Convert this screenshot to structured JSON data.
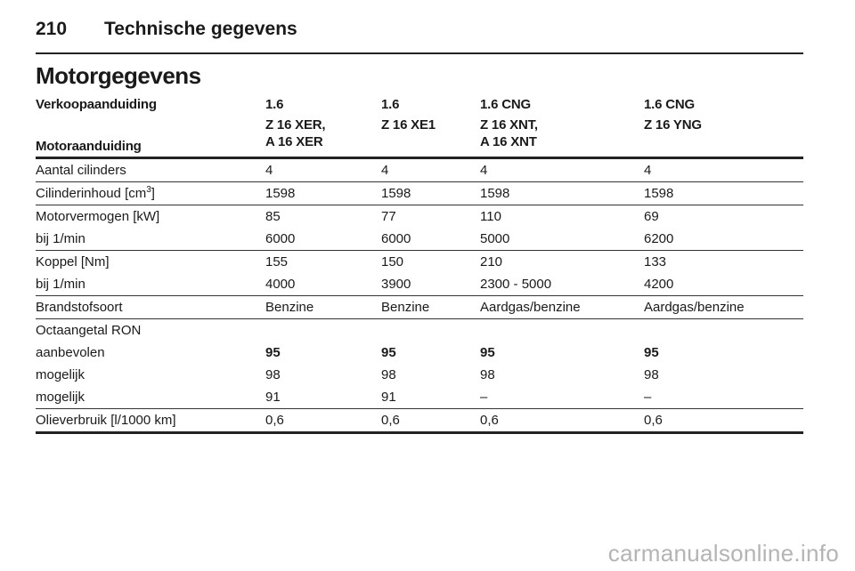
{
  "header": {
    "page_number": "210",
    "section": "Technische gegevens"
  },
  "title": "Motorgegevens",
  "table": {
    "header_row1": [
      "Verkoopaanduiding",
      "1.6",
      "1.6",
      "1.6 CNG",
      "1.6 CNG"
    ],
    "header_row2": {
      "label": "Motoraanduiding",
      "c1_line1": "Z 16 XER,",
      "c1_line2": "A 16 XER",
      "c2_line1": "Z 16 XE1",
      "c2_line2": "",
      "c3_line1": "Z 16 XNT,",
      "c3_line2": "A 16 XNT",
      "c4_line1": "Z 16 YNG",
      "c4_line2": ""
    },
    "cylinders": {
      "label": "Aantal cilinders",
      "values": [
        "4",
        "4",
        "4",
        "4"
      ]
    },
    "displacement": {
      "label_prefix": "Cilinderinhoud [cm",
      "label_sup": "3",
      "label_suffix": "]",
      "values": [
        "1598",
        "1598",
        "1598",
        "1598"
      ]
    },
    "power": {
      "label": "Motorvermogen [kW]",
      "values": [
        "85",
        "77",
        "110",
        "69"
      ]
    },
    "power_rpm": {
      "label": "bij 1/min",
      "values": [
        "6000",
        "6000",
        "5000",
        "6200"
      ]
    },
    "torque": {
      "label": "Koppel [Nm]",
      "values": [
        "155",
        "150",
        "210",
        "133"
      ]
    },
    "torque_rpm": {
      "label": "bij 1/min",
      "values": [
        "4000",
        "3900",
        "2300 - 5000",
        "4200"
      ]
    },
    "fuel_type": {
      "label": "Brandstofsoort",
      "values": [
        "Benzine",
        "Benzine",
        "Aardgas/benzine",
        "Aardgas/benzine"
      ]
    },
    "octane": {
      "label": "Octaangetal RON"
    },
    "octane_recommended": {
      "label": "aanbevolen",
      "values": [
        "95",
        "95",
        "95",
        "95"
      ]
    },
    "octane_possible1": {
      "label": "mogelijk",
      "values": [
        "98",
        "98",
        "98",
        "98"
      ]
    },
    "octane_possible2": {
      "label": "mogelijk",
      "values": [
        "91",
        "91",
        "–",
        "–"
      ]
    },
    "oil": {
      "label": "Olieverbruik [l/1000 km]",
      "values": [
        "0,6",
        "0,6",
        "0,6",
        "0,6"
      ]
    }
  },
  "watermark": "carmanualsonline.info"
}
